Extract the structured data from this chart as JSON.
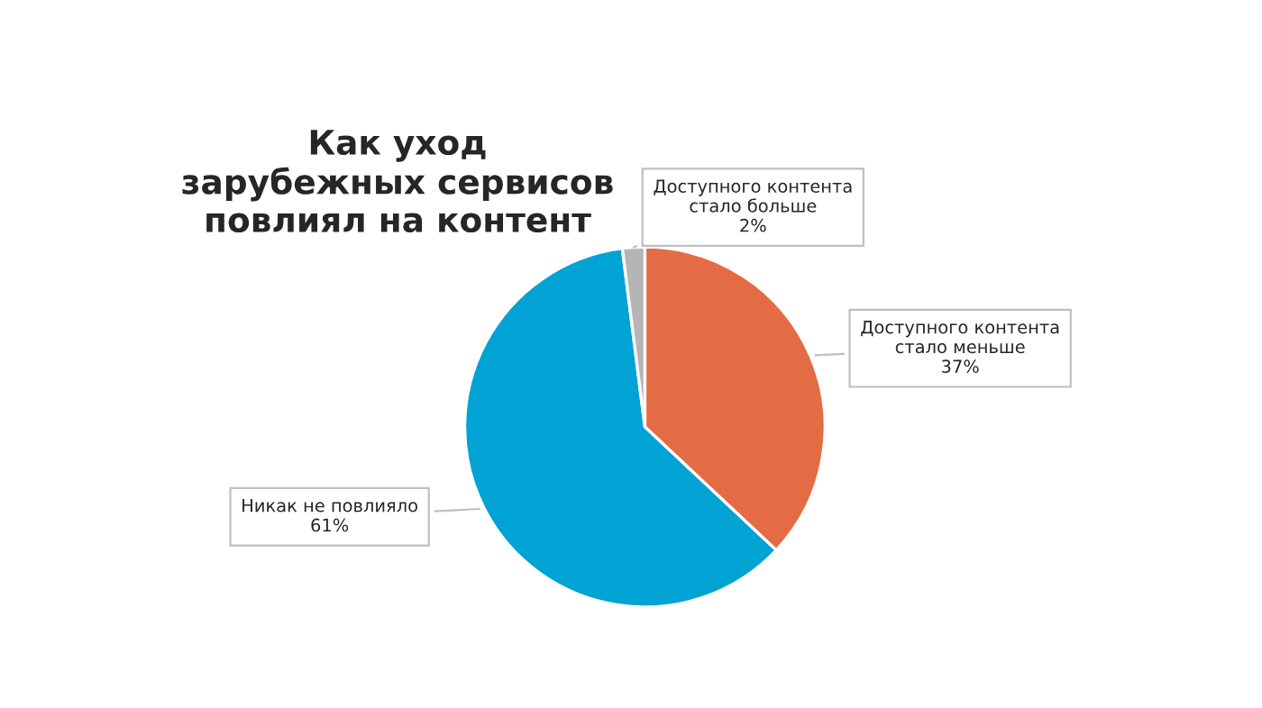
{
  "chart_data": {
    "type": "pie",
    "title": "Как уход\nзарубежных сервисов\nповлиял на контент",
    "categories": [
      "Доступного контента\nстало меньше",
      "Никак не повлияло",
      "Доступного контента\nстало больше"
    ],
    "values": [
      37,
      61,
      2
    ],
    "value_labels": [
      "37%",
      "61%",
      "2%"
    ],
    "colors": [
      "#e46c44",
      "#00a3d3",
      "#b5b5b5"
    ]
  }
}
